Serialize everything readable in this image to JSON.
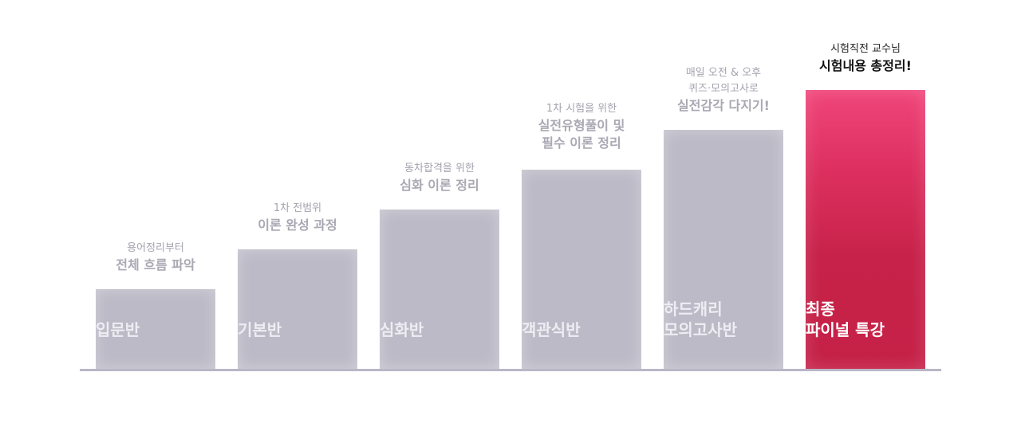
{
  "steps": [
    {
      "bar_label": "입문반",
      "sub": "용어정리부터",
      "main": "전체 흐름 파악"
    },
    {
      "bar_label": "기본반",
      "sub": "1차 전범위",
      "main": "이론 완성 과정"
    },
    {
      "bar_label": "심화반",
      "sub": "동차합격을 위한",
      "main": "심화 이론 정리"
    },
    {
      "bar_label": "객관식반",
      "sub": "1차 시험을 위한",
      "main": "실전유형풀이 및\n필수 이론 정리"
    },
    {
      "bar_label": "하드캐리\n모의고사반",
      "sub": "매일 오전 & 오후\n퀴즈·모의고사로",
      "main": "실전감각 다지기!"
    },
    {
      "bar_label": "최종\n파이널 특강",
      "sub": "시험직전 교수님",
      "main": "시험내용 총정리!"
    }
  ],
  "colors": {
    "bar": "#bbbac6",
    "final_bar": "#c72249",
    "baseline": "#b9b7c6"
  }
}
